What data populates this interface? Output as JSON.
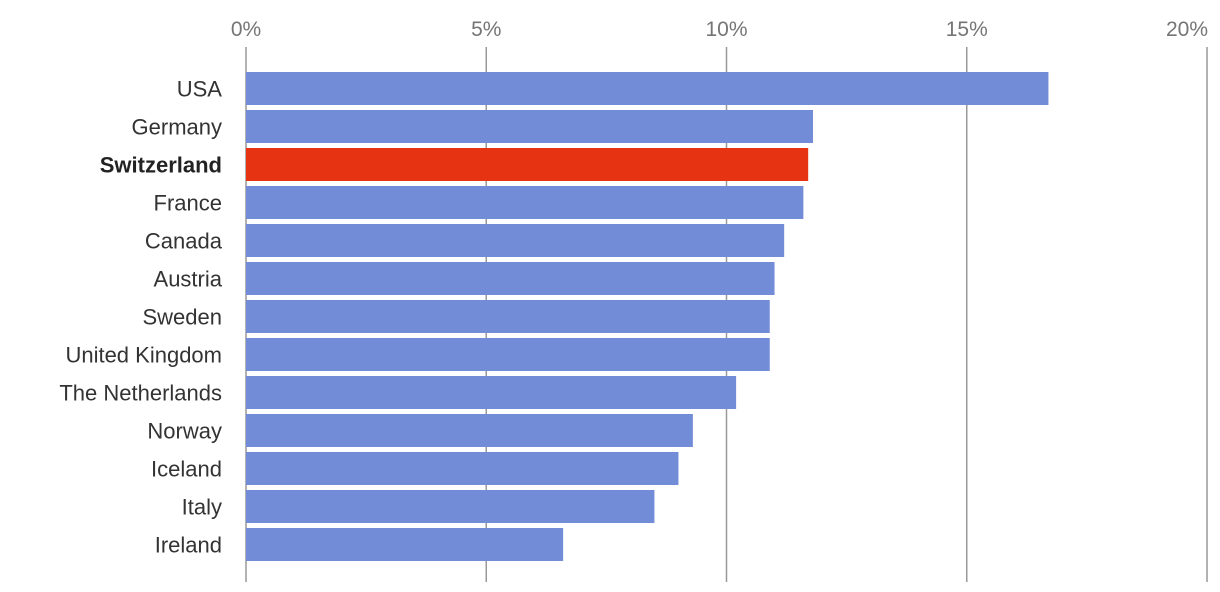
{
  "chart_data": {
    "type": "bar",
    "orientation": "horizontal",
    "x_ticks": [
      "0%",
      "5%",
      "10%",
      "15%",
      "20%"
    ],
    "xlim": [
      0,
      20
    ],
    "grid": true,
    "highlight": "Switzerland",
    "colors": {
      "default": "#728cd8",
      "highlight": "#e63312"
    },
    "categories": [
      "USA",
      "Germany",
      "Switzerland",
      "France",
      "Canada",
      "Austria",
      "Sweden",
      "United Kingdom",
      "The Netherlands",
      "Norway",
      "Iceland",
      "Italy",
      "Ireland"
    ],
    "values": [
      16.7,
      11.8,
      11.7,
      11.6,
      11.2,
      11.0,
      10.9,
      10.9,
      10.2,
      9.3,
      9.0,
      8.5,
      6.6
    ]
  }
}
